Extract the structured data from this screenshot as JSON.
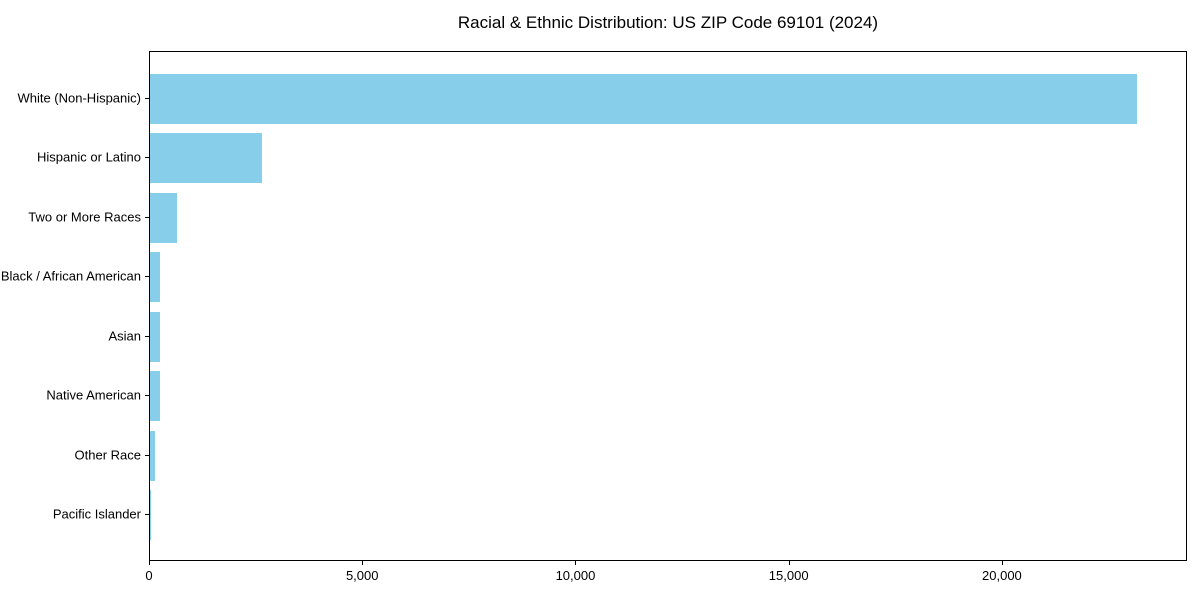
{
  "chart_data": {
    "type": "bar",
    "orientation": "horizontal",
    "title": "Racial & Ethnic Distribution: US ZIP Code 69101 (2024)",
    "xlabel": "",
    "ylabel": "",
    "categories": [
      "White (Non-Hispanic)",
      "Hispanic or Latino",
      "Two or More Races",
      "Black / African American",
      "Asian",
      "Native American",
      "Other Race",
      "Pacific Islander"
    ],
    "values": [
      23140,
      2625,
      635,
      245,
      235,
      225,
      115,
      10
    ],
    "xlim": [
      0,
      24340
    ],
    "x_ticks": [
      0,
      5000,
      10000,
      15000,
      20000
    ],
    "x_tick_labels": [
      "0",
      "5,000",
      "10,000",
      "15,000",
      "20,000"
    ],
    "grid": false,
    "legend": null,
    "bar_color": "#87CEEB",
    "axis_color": "#000000",
    "background_color": "#FFFFFF"
  }
}
